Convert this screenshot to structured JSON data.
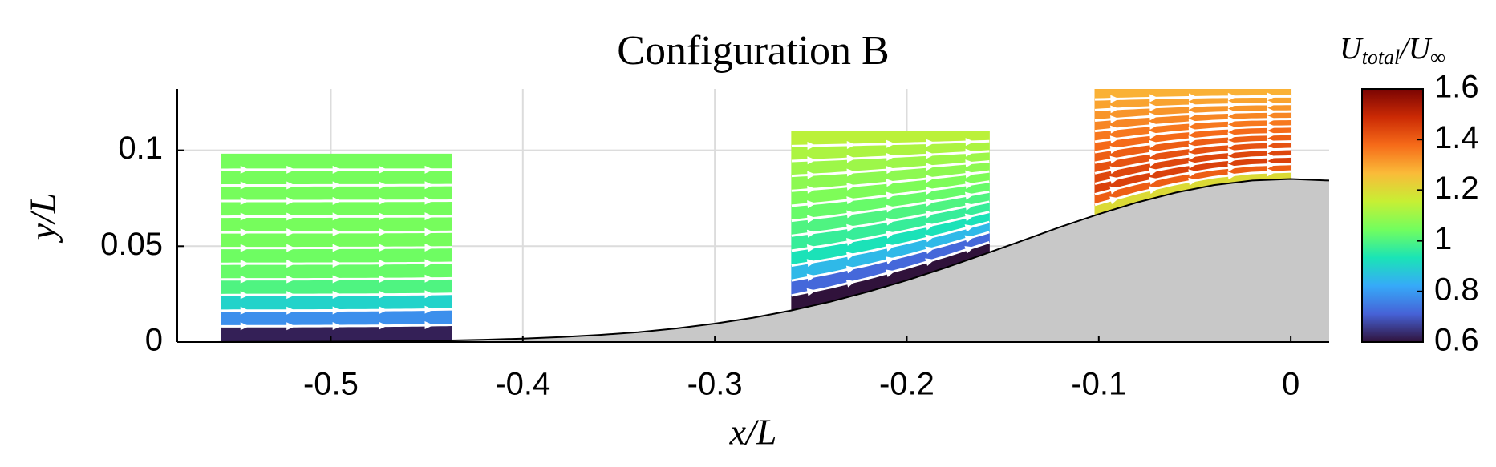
{
  "chart_data": {
    "type": "streamfield",
    "title": "Configuration B",
    "x_label": "x/L",
    "y_label": "y/L",
    "colorbar_label": [
      {
        "text": "U",
        "sub": false
      },
      {
        "text": "total",
        "sub": true
      },
      {
        "text": "/U",
        "sub": false
      },
      {
        "text": "∞",
        "sub": true
      }
    ],
    "xlim": [
      -0.58,
      0.02
    ],
    "ylim": [
      0,
      0.132
    ],
    "xticks": [
      -0.5,
      -0.4,
      -0.3,
      -0.2,
      -0.1,
      0
    ],
    "yticks": [
      0,
      0.05,
      0.1
    ],
    "grid": true,
    "clim": [
      0.6,
      1.6
    ],
    "cticks": [
      0.6,
      0.8,
      1,
      1.2,
      1.4,
      1.6
    ],
    "colormap": [
      "#30123b",
      "#4662d7",
      "#36aaf9",
      "#1ae4b6",
      "#72fe5e",
      "#c7ef34",
      "#fabb39",
      "#f66b19",
      "#cb2a04",
      "#7a0403"
    ],
    "wall": {
      "color": "#c8c8c8",
      "x": [
        -0.58,
        -0.56,
        -0.54,
        -0.52,
        -0.5,
        -0.48,
        -0.46,
        -0.44,
        -0.42,
        -0.4,
        -0.38,
        -0.36,
        -0.34,
        -0.32,
        -0.3,
        -0.28,
        -0.26,
        -0.24,
        -0.22,
        -0.2,
        -0.18,
        -0.16,
        -0.14,
        -0.12,
        -0.1,
        -0.08,
        -0.06,
        -0.04,
        -0.02,
        0,
        0.02
      ],
      "y": [
        0,
        0,
        0.0001,
        0.0001,
        0.0002,
        0.0003,
        0.0005,
        0.0008,
        0.0012,
        0.0018,
        0.0026,
        0.0037,
        0.0051,
        0.0071,
        0.0096,
        0.0127,
        0.0165,
        0.021,
        0.0263,
        0.0322,
        0.0387,
        0.0457,
        0.0528,
        0.06,
        0.0667,
        0.0728,
        0.0779,
        0.0818,
        0.0842,
        0.085,
        0.0842
      ]
    },
    "patches": [
      {
        "x": [
          -0.557,
          -0.437
        ],
        "top": 0.098,
        "u": [
          0.62,
          0.78,
          0.9,
          1.0,
          1.03,
          1.04,
          1.05,
          1.05,
          1.05,
          1.05,
          1.05,
          1.05
        ]
      },
      {
        "x": [
          -0.26,
          -0.157
        ],
        "top": 0.11,
        "u": [
          0.6,
          0.72,
          0.85,
          0.93,
          0.97,
          1.0,
          1.03,
          1.06,
          1.08,
          1.1,
          1.12,
          1.14
        ]
      },
      {
        "x": [
          -0.102,
          0
        ],
        "top": 0.132,
        "u": [
          1.2,
          1.4,
          1.45,
          1.44,
          1.42,
          1.4,
          1.38,
          1.36,
          1.34,
          1.32,
          1.3,
          1.28
        ]
      }
    ]
  }
}
